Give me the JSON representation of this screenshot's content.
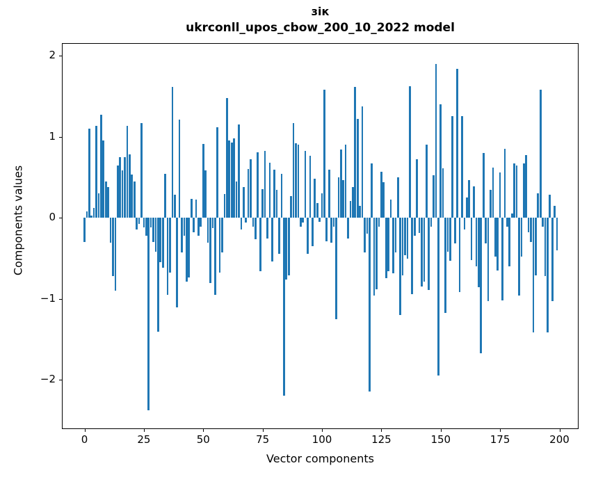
{
  "title": {
    "line1": "зік",
    "line2": "ukrconll_upos_cbow_200_10_2022 model"
  },
  "chart_data": {
    "type": "bar",
    "title_line1": "зік",
    "title_line2": "ukrconll_upos_cbow_200_10_2022 model",
    "xlabel": "Vector components",
    "ylabel": "Components values",
    "bar_color": "#1f77b4",
    "background_color": "#ffffff",
    "grid": false,
    "legend": false,
    "xlim": [
      -10,
      209
    ],
    "ylim": [
      -2.61,
      2.15
    ],
    "x_ticks": [
      0,
      25,
      50,
      75,
      100,
      125,
      150,
      175,
      200
    ],
    "x_tick_labels": [
      "0",
      "25",
      "50",
      "75",
      "100",
      "125",
      "150",
      "175",
      "200"
    ],
    "y_ticks": [
      2,
      1,
      0,
      -1,
      -2
    ],
    "y_tick_labels": [
      "2",
      "1",
      "0",
      "−1",
      "−2"
    ],
    "x": "vector component index 0..199",
    "values": [
      -0.3,
      0.08,
      1.1,
      0.03,
      0.12,
      1.13,
      0.3,
      1.27,
      0.95,
      0.45,
      0.38,
      -0.31,
      -0.72,
      -0.9,
      0.64,
      0.75,
      0.58,
      0.75,
      1.13,
      0.78,
      0.53,
      0.45,
      -0.15,
      -0.08,
      1.17,
      -0.12,
      -0.22,
      -2.38,
      -0.12,
      -0.3,
      -0.42,
      -1.41,
      -0.55,
      -0.62,
      0.54,
      -0.95,
      -0.68,
      1.61,
      0.28,
      -1.11,
      1.21,
      -0.43,
      -0.22,
      -0.79,
      -0.74,
      0.23,
      -0.18,
      0.22,
      -0.22,
      -0.11,
      0.91,
      0.58,
      -0.31,
      -0.81,
      -0.13,
      -0.95,
      1.12,
      -0.68,
      -0.43,
      0.29,
      1.48,
      0.95,
      0.93,
      0.98,
      0.45,
      1.15,
      -0.15,
      0.38,
      -0.06,
      0.6,
      0.72,
      -0.11,
      -0.27,
      0.81,
      -0.66,
      0.35,
      0.82,
      -0.26,
      0.68,
      -0.54,
      0.59,
      0.34,
      -0.45,
      0.54,
      -2.2,
      -0.76,
      -0.71,
      0.27,
      1.17,
      0.92,
      0.9,
      -0.11,
      -0.06,
      0.82,
      -0.45,
      0.76,
      -0.35,
      0.48,
      0.18,
      -0.05,
      0.3,
      1.58,
      -0.29,
      0.59,
      -0.31,
      -0.11,
      -1.25,
      0.5,
      0.84,
      0.46,
      0.9,
      -0.26,
      0.21,
      0.38,
      1.61,
      1.22,
      0.15,
      1.37,
      -0.43,
      -0.2,
      -2.15,
      0.67,
      -0.96,
      -0.88,
      -0.11,
      0.57,
      0.44,
      -0.75,
      -0.66,
      0.22,
      -0.69,
      -0.43,
      0.5,
      -1.2,
      -0.71,
      -0.46,
      -0.51,
      1.62,
      -0.94,
      -0.22,
      0.72,
      -0.19,
      -0.85,
      -0.79,
      0.9,
      -0.89,
      -0.11,
      0.52,
      1.9,
      -1.95,
      1.4,
      0.61,
      -1.18,
      -0.42,
      -0.53,
      1.25,
      -0.32,
      1.84,
      -0.92,
      1.25,
      -0.15,
      0.25,
      0.46,
      -0.52,
      0.39,
      -0.6,
      -0.86,
      -1.67,
      0.8,
      -0.32,
      -1.03,
      0.34,
      0.62,
      -0.48,
      -0.65,
      0.56,
      -1.02,
      0.85,
      -0.11,
      -0.6,
      0.05,
      0.67,
      0.64,
      -0.96,
      -0.48,
      0.67,
      0.77,
      -0.18,
      -0.3,
      -1.42,
      -0.71,
      0.3,
      1.58,
      -0.11,
      -0.72,
      -1.42,
      0.28,
      -1.03,
      0.15,
      -0.4
    ]
  }
}
